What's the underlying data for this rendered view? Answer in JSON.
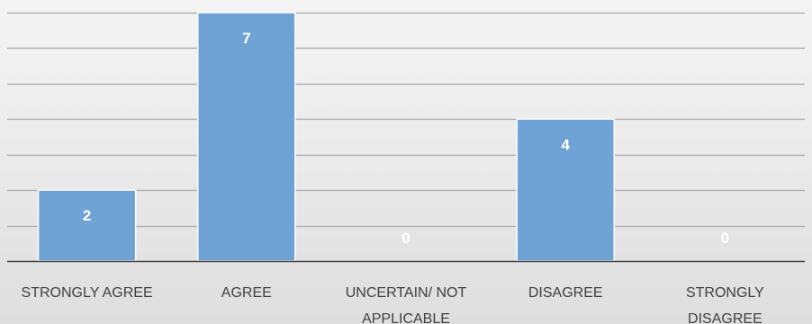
{
  "chart_data": {
    "type": "bar",
    "categories": [
      [
        "STRONGLY AGREE"
      ],
      [
        "AGREE"
      ],
      [
        "UNCERTAIN/ NOT",
        "APPLICABLE"
      ],
      [
        "DISAGREE"
      ],
      [
        "STRONGLY",
        "DISAGREE"
      ]
    ],
    "values": [
      2,
      7,
      0,
      4,
      0
    ],
    "title": "",
    "xlabel": "",
    "ylabel": "",
    "ylim": [
      0,
      7
    ],
    "grid": true,
    "legend": "none",
    "data_labels": true
  },
  "colors": {
    "bar": "#6fa3d6",
    "bar_edge": "#ffffff",
    "gridline": "#a6a6a6",
    "axis": "#3f3f3f",
    "value_label": "#ffffff",
    "category_label": "#404040"
  }
}
